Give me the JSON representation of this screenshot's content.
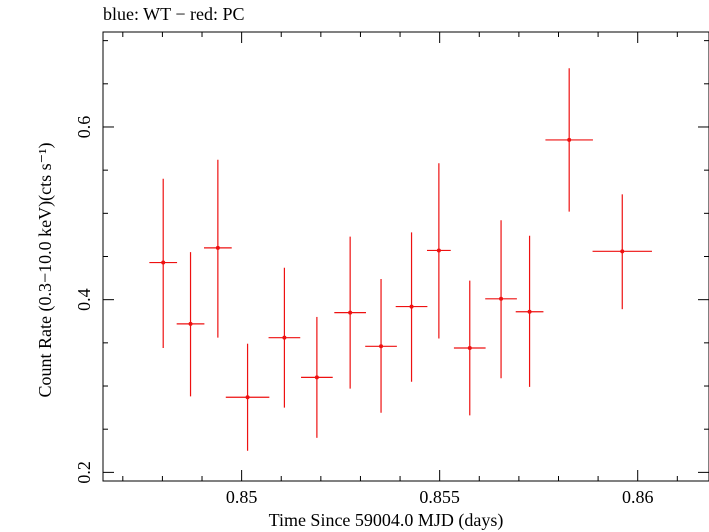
{
  "chart_data": {
    "type": "scatter",
    "title": "blue: WT − red: PC",
    "xlabel": "Time Since 59004.0 MJD (days)",
    "ylabel": "Count Rate (0.3−10.0 keV)(cts s⁻¹)",
    "xlim": [
      0.8465,
      0.8618
    ],
    "ylim": [
      0.19,
      0.71
    ],
    "x_ticks": [
      0.85,
      0.855,
      0.86
    ],
    "x_tick_labels": [
      "0.85",
      "0.855",
      "0.86"
    ],
    "y_ticks": [
      0.2,
      0.4,
      0.6
    ],
    "y_tick_labels": [
      "0.2",
      "0.4",
      "0.6"
    ],
    "series": [
      {
        "name": "PC",
        "color": "#ee1111",
        "points": [
          {
            "x": 0.84802,
            "xerr": 0.00035,
            "y": 0.443,
            "yerr_low": 0.099,
            "yerr_high": 0.097
          },
          {
            "x": 0.84871,
            "xerr": 0.00035,
            "y": 0.372,
            "yerr_low": 0.084,
            "yerr_high": 0.083
          },
          {
            "x": 0.8494,
            "xerr": 0.00035,
            "y": 0.46,
            "yerr_low": 0.104,
            "yerr_high": 0.102
          },
          {
            "x": 0.85015,
            "xerr": 0.00055,
            "y": 0.287,
            "yerr_low": 0.062,
            "yerr_high": 0.062
          },
          {
            "x": 0.85108,
            "xerr": 0.0004,
            "y": 0.356,
            "yerr_low": 0.081,
            "yerr_high": 0.081
          },
          {
            "x": 0.8519,
            "xerr": 0.0004,
            "y": 0.31,
            "yerr_low": 0.07,
            "yerr_high": 0.07
          },
          {
            "x": 0.85274,
            "xerr": 0.0004,
            "y": 0.385,
            "yerr_low": 0.088,
            "yerr_high": 0.088
          },
          {
            "x": 0.85352,
            "xerr": 0.0004,
            "y": 0.346,
            "yerr_low": 0.077,
            "yerr_high": 0.078
          },
          {
            "x": 0.85429,
            "xerr": 0.0004,
            "y": 0.392,
            "yerr_low": 0.087,
            "yerr_high": 0.086
          },
          {
            "x": 0.85498,
            "xerr": 0.0003,
            "y": 0.457,
            "yerr_low": 0.102,
            "yerr_high": 0.101
          },
          {
            "x": 0.85576,
            "xerr": 0.0004,
            "y": 0.344,
            "yerr_low": 0.078,
            "yerr_high": 0.078
          },
          {
            "x": 0.85655,
            "xerr": 0.0004,
            "y": 0.401,
            "yerr_low": 0.092,
            "yerr_high": 0.091
          },
          {
            "x": 0.85727,
            "xerr": 0.00035,
            "y": 0.386,
            "yerr_low": 0.087,
            "yerr_high": 0.088
          },
          {
            "x": 0.85827,
            "xerr": 0.0006,
            "y": 0.585,
            "yerr_low": 0.083,
            "yerr_high": 0.083
          },
          {
            "x": 0.85961,
            "xerr": 0.00075,
            "y": 0.456,
            "yerr_low": 0.067,
            "yerr_high": 0.066
          }
        ]
      }
    ],
    "grid": false
  }
}
